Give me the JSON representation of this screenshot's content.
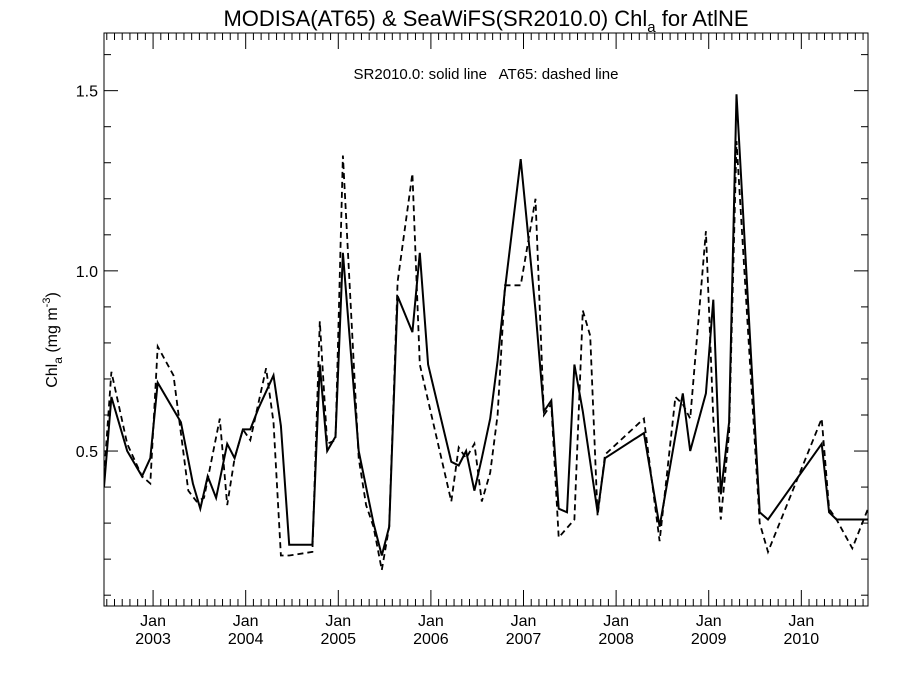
{
  "chart_data": {
    "type": "line",
    "title": {
      "main": "MODISA(AT65) & SeaWiFS(SR2010.0)  Chl",
      "subscript": "a",
      "suffix": " for AtlNE"
    },
    "annotation": "SR2010.0: solid line   AT65: dashed line",
    "ylabel": {
      "base": "Chl",
      "subscript": "a",
      "unit_open": " (mg m",
      "unit_sup": "-3",
      "unit_close": ")"
    },
    "ylim": [
      0.07,
      1.66
    ],
    "xlim": [
      2002.47,
      2010.72
    ],
    "yticks": [
      "0.5",
      "1.0",
      "1.5"
    ],
    "ytick_values": [
      0.5,
      1.0,
      1.5
    ],
    "xtick_values": [
      2003,
      2004,
      2005,
      2006,
      2007,
      2008,
      2009,
      2010
    ],
    "xtick_month_label": "Jan",
    "xtick_year_labels": [
      "2003",
      "2004",
      "2005",
      "2006",
      "2007",
      "2008",
      "2009",
      "2010"
    ],
    "grid": false,
    "series": [
      {
        "style": "solid",
        "x": [
          2002.47,
          2002.55,
          2002.72,
          2002.88,
          2002.97,
          2003.05,
          2003.3,
          2003.43,
          2003.51,
          2003.59,
          2003.68,
          2003.8,
          2003.88,
          2003.97,
          2004.05,
          2004.14,
          2004.3,
          2004.38,
          2004.47,
          2004.72,
          2004.8,
          2004.88,
          2004.97,
          2005.05,
          2005.22,
          2005.3,
          2005.38,
          2005.47,
          2005.55,
          2005.64,
          2005.8,
          2005.88,
          2005.97,
          2006.22,
          2006.3,
          2006.38,
          2006.47,
          2006.55,
          2006.64,
          2006.72,
          2006.8,
          2006.97,
          2007.13,
          2007.22,
          2007.3,
          2007.38,
          2007.47,
          2007.55,
          2007.64,
          2007.8,
          2007.88,
          2008.3,
          2008.47,
          2008.72,
          2008.8,
          2008.97,
          2009.05,
          2009.13,
          2009.22,
          2009.3,
          2009.55,
          2009.64,
          2010.22,
          2010.3,
          2010.38,
          2010.55,
          2010.72
        ],
        "y": [
          0.4,
          0.65,
          0.5,
          0.43,
          0.48,
          0.69,
          0.58,
          0.41,
          0.34,
          0.43,
          0.37,
          0.52,
          0.48,
          0.56,
          0.56,
          0.62,
          0.71,
          0.57,
          0.24,
          0.24,
          0.74,
          0.5,
          0.54,
          1.05,
          0.5,
          0.4,
          0.3,
          0.21,
          0.29,
          0.93,
          0.83,
          1.05,
          0.74,
          0.47,
          0.46,
          0.5,
          0.39,
          0.48,
          0.59,
          0.75,
          0.95,
          1.31,
          0.89,
          0.61,
          0.64,
          0.34,
          0.33,
          0.74,
          0.61,
          0.33,
          0.48,
          0.55,
          0.29,
          0.66,
          0.5,
          0.66,
          0.92,
          0.38,
          0.58,
          1.49,
          0.33,
          0.31,
          0.52,
          0.33,
          0.31,
          0.31,
          0.31
        ]
      },
      {
        "style": "dashed",
        "x": [
          2002.47,
          2002.55,
          2002.72,
          2002.88,
          2002.97,
          2003.05,
          2003.22,
          2003.38,
          2003.47,
          2003.55,
          2003.72,
          2003.8,
          2003.88,
          2003.97,
          2004.05,
          2004.22,
          2004.3,
          2004.38,
          2004.47,
          2004.72,
          2004.8,
          2004.88,
          2004.97,
          2005.05,
          2005.22,
          2005.3,
          2005.38,
          2005.47,
          2005.55,
          2005.64,
          2005.8,
          2005.88,
          2006.22,
          2006.3,
          2006.38,
          2006.47,
          2006.55,
          2006.64,
          2006.72,
          2006.8,
          2006.97,
          2007.13,
          2007.22,
          2007.3,
          2007.38,
          2007.55,
          2007.64,
          2007.72,
          2007.8,
          2007.88,
          2008.3,
          2008.47,
          2008.64,
          2008.72,
          2008.8,
          2008.97,
          2009.05,
          2009.13,
          2009.22,
          2009.3,
          2009.55,
          2009.64,
          2010.22,
          2010.3,
          2010.38,
          2010.55,
          2010.72
        ],
        "y": [
          0.43,
          0.72,
          0.52,
          0.43,
          0.41,
          0.79,
          0.71,
          0.39,
          0.36,
          0.37,
          0.59,
          0.35,
          0.48,
          0.56,
          0.53,
          0.73,
          0.58,
          0.21,
          0.21,
          0.22,
          0.86,
          0.52,
          0.53,
          1.32,
          0.48,
          0.35,
          0.29,
          0.17,
          0.29,
          0.97,
          1.27,
          0.74,
          0.36,
          0.51,
          0.48,
          0.52,
          0.36,
          0.44,
          0.6,
          0.96,
          0.96,
          1.2,
          0.6,
          0.63,
          0.26,
          0.31,
          0.89,
          0.82,
          0.32,
          0.49,
          0.59,
          0.25,
          0.65,
          0.63,
          0.59,
          1.11,
          0.59,
          0.31,
          0.55,
          1.36,
          0.3,
          0.22,
          0.59,
          0.34,
          0.31,
          0.23,
          0.34
        ]
      }
    ]
  }
}
